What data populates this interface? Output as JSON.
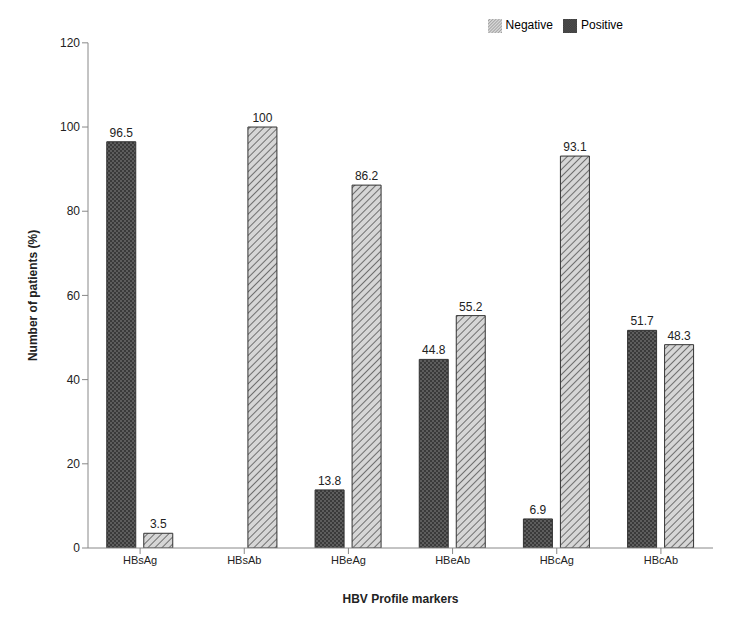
{
  "chart_data": {
    "type": "bar",
    "x_label": "HBV Profile markers",
    "y_label": "Number of patients (%)",
    "categories": [
      "HBsAg",
      "HBsAb",
      "HBeAg",
      "HBeAb",
      "HBcAg",
      "HBcAb"
    ],
    "series": [
      {
        "name": "Positive",
        "color": "#3a3a3a",
        "values": [
          96.5,
          0,
          13.8,
          44.8,
          6.9,
          51.7
        ]
      },
      {
        "name": "Negative",
        "color": "#d6d6d6",
        "values": [
          3.5,
          100,
          86.2,
          55.2,
          93.1,
          48.3
        ]
      }
    ],
    "ylim": [
      0,
      120
    ],
    "yticks": [
      0,
      20,
      40,
      60,
      80,
      100,
      120
    ],
    "grid": false,
    "legend": "top-right",
    "data_labels": true
  }
}
